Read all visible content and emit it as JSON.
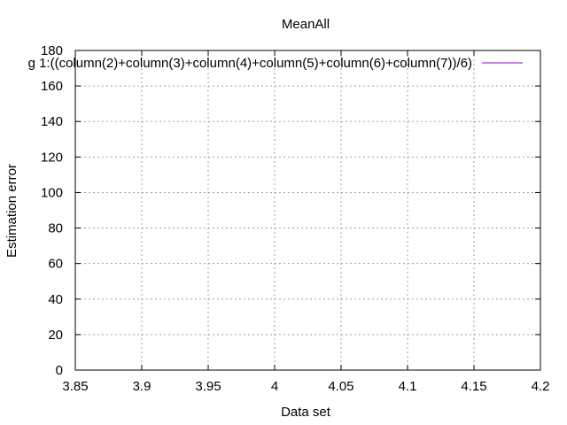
{
  "chart_data": {
    "type": "line",
    "title": "MeanAll",
    "xlabel": "Data set",
    "ylabel": "Estimation error",
    "xlim": [
      3.85,
      4.2
    ],
    "ylim": [
      0,
      180
    ],
    "xticks": [
      "3.85",
      "3.9",
      "3.95",
      "4",
      "4.05",
      "4.1",
      "4.15",
      "4.2"
    ],
    "yticks": [
      "0",
      "20",
      "40",
      "60",
      "80",
      "100",
      "120",
      "140",
      "160",
      "180"
    ],
    "grid": true,
    "legend_position": "top-right",
    "series": [
      {
        "name": "g 1:((column(2)+column(3)+column(4)+column(5)+column(6)+column(7))/6)",
        "color": "#9400d3",
        "x": [],
        "y": []
      }
    ]
  }
}
